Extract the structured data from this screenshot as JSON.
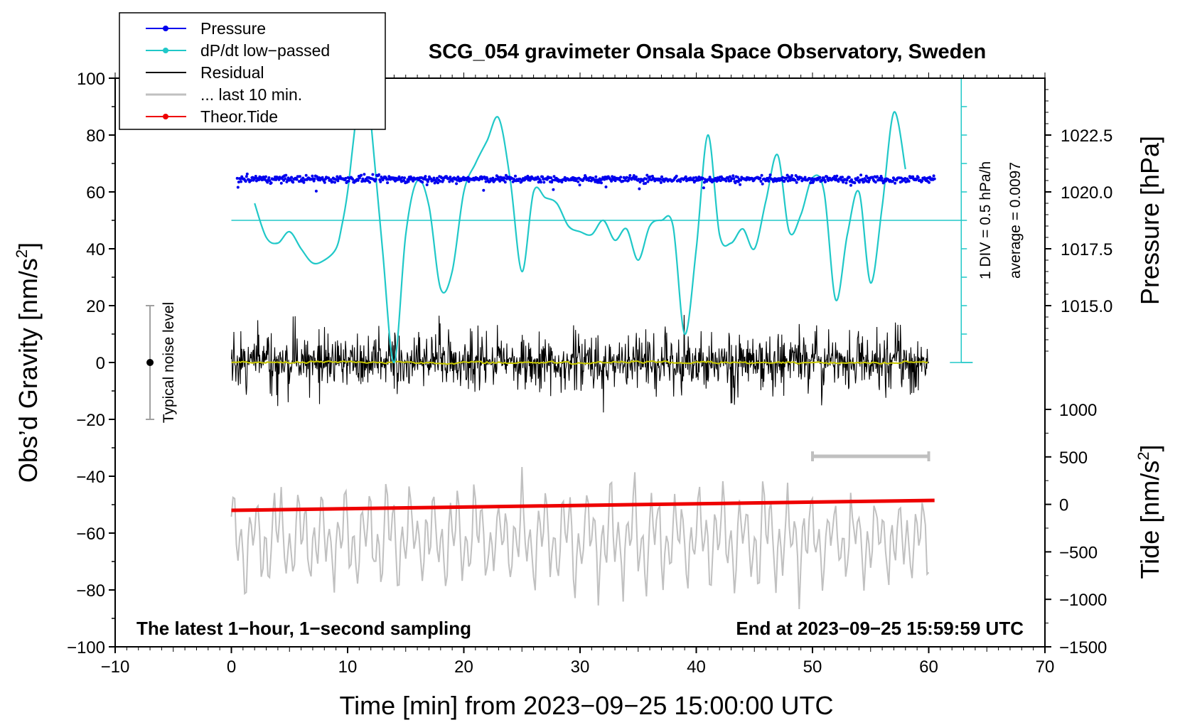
{
  "chart_data": {
    "type": "line",
    "title": "SCG_054 gravimeter Onsala Space Observatory, Sweden",
    "xlabel": "Time [min] from 2023−09−25 15:00:00 UTC",
    "ylabel_left_prefix": "Obs’d Gravity [nm/s",
    "ylabel_right_top": "Pressure [hPa]",
    "ylabel_right_bottom_prefix": "Tide [nm/s",
    "unit_sup": "2",
    "unit_close": "]",
    "xlim": [
      -10,
      70
    ],
    "ylim": [
      -100,
      100
    ],
    "x_ticks": [
      "−10",
      "0",
      "10",
      "20",
      "30",
      "40",
      "50",
      "60",
      "70"
    ],
    "y_ticks": [
      "100",
      "80",
      "60",
      "40",
      "20",
      "0",
      "−20",
      "−40",
      "−60",
      "−80",
      "−100"
    ],
    "pressure_axis": {
      "range_hPa": [
        1012.5,
        1025.0
      ],
      "ticks": [
        "1022.5",
        "1020.0",
        "1017.5",
        "1015.0"
      ]
    },
    "tide_axis": {
      "range": [
        -1500,
        1500
      ],
      "ticks": [
        "1000",
        "500",
        "0",
        "−500",
        "−1000",
        "−1500"
      ]
    },
    "legend": [
      {
        "label": "Pressure",
        "color": "#0000ee",
        "marker": true
      },
      {
        "label": "dP/dt low−passed",
        "color": "#20c8c8",
        "marker": true
      },
      {
        "label": "Residual",
        "color": "#000000",
        "marker": false
      },
      {
        "label": "... last 10 min.",
        "color": "#c0c0c0",
        "marker": false
      },
      {
        "label": "Theor.Tide",
        "color": "#ee0000",
        "marker": true
      }
    ],
    "annotations": {
      "bottom_left": "The latest 1−hour, 1−second sampling",
      "bottom_right": "End at 2023−09−25 15:59:59 UTC",
      "noise_label": "Typical noise level",
      "div_label": "1 DIV = 0.5 hPa/h",
      "avg_label": "average = 0.0097"
    },
    "noise_level": {
      "x": -7,
      "center": 0,
      "range": [
        -20,
        20
      ]
    },
    "pressure": {
      "x_range": [
        0.5,
        60.5
      ],
      "level_gravity_units": 64.5,
      "scatter_amplitude": 1.2
    },
    "dpdt": {
      "baseline_gravity_units": 50,
      "x": [
        2,
        3,
        4,
        5,
        6,
        7,
        8,
        9,
        9.5,
        10,
        10.5,
        11,
        11.5,
        12,
        13,
        14,
        15,
        16,
        17,
        18,
        19,
        20,
        21,
        22,
        23,
        24,
        25,
        26,
        27,
        28,
        29,
        30,
        31,
        32,
        33,
        34,
        35,
        36,
        37,
        38,
        39,
        40,
        41,
        42,
        43,
        44,
        45,
        46,
        47,
        48,
        49,
        50,
        51,
        52,
        53,
        54,
        55,
        56,
        57,
        58
      ],
      "y": [
        56,
        44,
        42,
        46,
        40,
        35,
        36,
        40,
        48,
        60,
        78,
        95,
        100,
        85,
        40,
        0,
        45,
        64,
        55,
        26,
        32,
        60,
        70,
        78,
        86,
        64,
        32,
        60,
        58,
        56,
        48,
        46,
        45,
        50,
        43,
        47,
        36,
        48,
        50,
        48,
        10,
        40,
        80,
        45,
        42,
        47,
        40,
        57,
        73,
        46,
        52,
        65,
        60,
        22,
        45,
        60,
        28,
        55,
        88,
        68
      ]
    },
    "residual": {
      "x_range": [
        0,
        60
      ],
      "amplitude": 25,
      "trend": 0
    },
    "last10": {
      "x_range": [
        0,
        60
      ],
      "center": -62,
      "amplitude": 20,
      "bar_x": [
        50,
        60
      ]
    },
    "tide": {
      "x": [
        0,
        60.5
      ],
      "values": [
        -52,
        -48.5
      ]
    }
  }
}
